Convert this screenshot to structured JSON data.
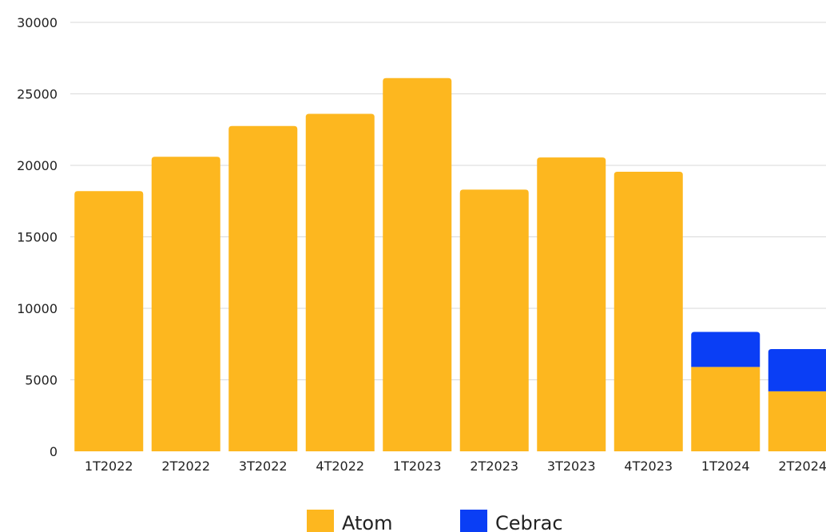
{
  "chart_data": {
    "type": "bar",
    "stacked": true,
    "categories": [
      "1T2022",
      "2T2022",
      "3T2022",
      "4T2022",
      "1T2023",
      "2T2023",
      "3T2023",
      "4T2023",
      "1T2024",
      "2T2024"
    ],
    "series": [
      {
        "name": "Atom",
        "color": "#FDB71F",
        "values": [
          18200,
          20600,
          22750,
          23600,
          26100,
          18300,
          20550,
          19550,
          5900,
          4200
        ]
      },
      {
        "name": "Cebrac",
        "color": "#0A3EF5",
        "values": [
          0,
          0,
          0,
          0,
          0,
          0,
          0,
          0,
          2450,
          2950
        ]
      }
    ],
    "yticks": [
      "0",
      "5000",
      "10000",
      "15000",
      "20000",
      "25000",
      "30000"
    ],
    "ylim": [
      0,
      30000
    ],
    "grid": true,
    "legend": "bottom",
    "title": "",
    "xlabel": "",
    "ylabel": ""
  }
}
